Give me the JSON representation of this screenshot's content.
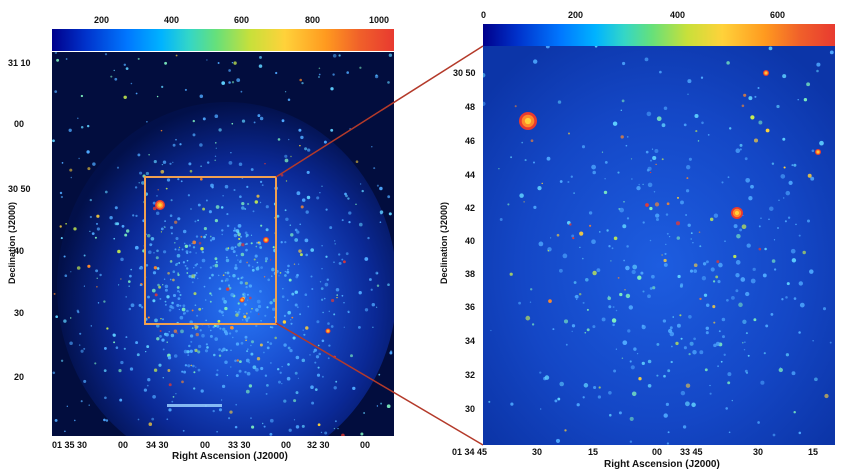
{
  "left_panel": {
    "colorbar": {
      "ticks": [
        "200",
        "400",
        "600",
        "800",
        "1000"
      ],
      "range": [
        0,
        1000
      ]
    },
    "y_ticks": [
      "31 10",
      "00",
      "30 50",
      "40",
      "30",
      "20"
    ],
    "x_ticks": [
      "01 35 30",
      "00",
      "34 30",
      "00",
      "33 30",
      "00",
      "32 30",
      "00"
    ],
    "y_axis_label": "Declination (J2000)",
    "x_axis_label": "Right Ascension (J2000)",
    "zoom_box_color": "#f0a050"
  },
  "right_panel": {
    "colorbar": {
      "ticks": [
        "0",
        "200",
        "400",
        "600"
      ],
      "range": [
        0,
        700
      ]
    },
    "y_ticks": [
      "30 50",
      "48",
      "46",
      "44",
      "42",
      "40",
      "38",
      "36",
      "34",
      "32",
      "30"
    ],
    "x_ticks": [
      "01 34 45",
      "30",
      "15",
      "00",
      "33 45",
      "30",
      "15"
    ],
    "y_axis_label": "Declination (J2000)",
    "x_axis_label": "Right Ascension (J2000)"
  },
  "connector_color": "#b43a2a"
}
